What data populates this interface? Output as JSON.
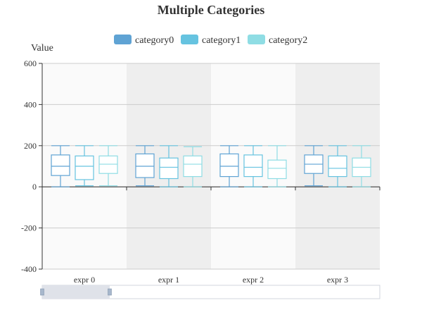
{
  "chart_data": {
    "type": "boxplot",
    "title": "Multiple Categories",
    "ylabel": "Value",
    "xlabel": "",
    "ylim": [
      -400,
      600
    ],
    "yticks": [
      -400,
      -200,
      0,
      200,
      400,
      600
    ],
    "categories": [
      "expr 0",
      "expr 1",
      "expr 2",
      "expr 3"
    ],
    "legend_position": "top-center",
    "series": [
      {
        "name": "category0",
        "color": "#5fa3d4",
        "boxes": [
          {
            "min": 0,
            "q1": 55,
            "median": 100,
            "q3": 155,
            "max": 200
          },
          {
            "min": 5,
            "q1": 45,
            "median": 100,
            "q3": 160,
            "max": 200
          },
          {
            "min": 0,
            "q1": 50,
            "median": 100,
            "q3": 160,
            "max": 200
          },
          {
            "min": 5,
            "q1": 65,
            "median": 110,
            "q3": 155,
            "max": 200
          }
        ]
      },
      {
        "name": "category1",
        "color": "#66c3e0",
        "boxes": [
          {
            "min": 5,
            "q1": 35,
            "median": 100,
            "q3": 150,
            "max": 200
          },
          {
            "min": 0,
            "q1": 40,
            "median": 95,
            "q3": 140,
            "max": 200
          },
          {
            "min": 0,
            "q1": 50,
            "median": 95,
            "q3": 155,
            "max": 200
          },
          {
            "min": 0,
            "q1": 50,
            "median": 90,
            "q3": 150,
            "max": 200
          }
        ]
      },
      {
        "name": "category2",
        "color": "#8fdde4",
        "boxes": [
          {
            "min": 5,
            "q1": 65,
            "median": 110,
            "q3": 150,
            "max": 200
          },
          {
            "min": 0,
            "q1": 50,
            "median": 110,
            "q3": 150,
            "max": 195
          },
          {
            "min": 0,
            "q1": 40,
            "median": 90,
            "q3": 130,
            "max": 200
          },
          {
            "min": 0,
            "q1": 50,
            "median": 95,
            "q3": 140,
            "max": 200
          }
        ]
      }
    ],
    "zoom_range": [
      0,
      0.2
    ]
  }
}
